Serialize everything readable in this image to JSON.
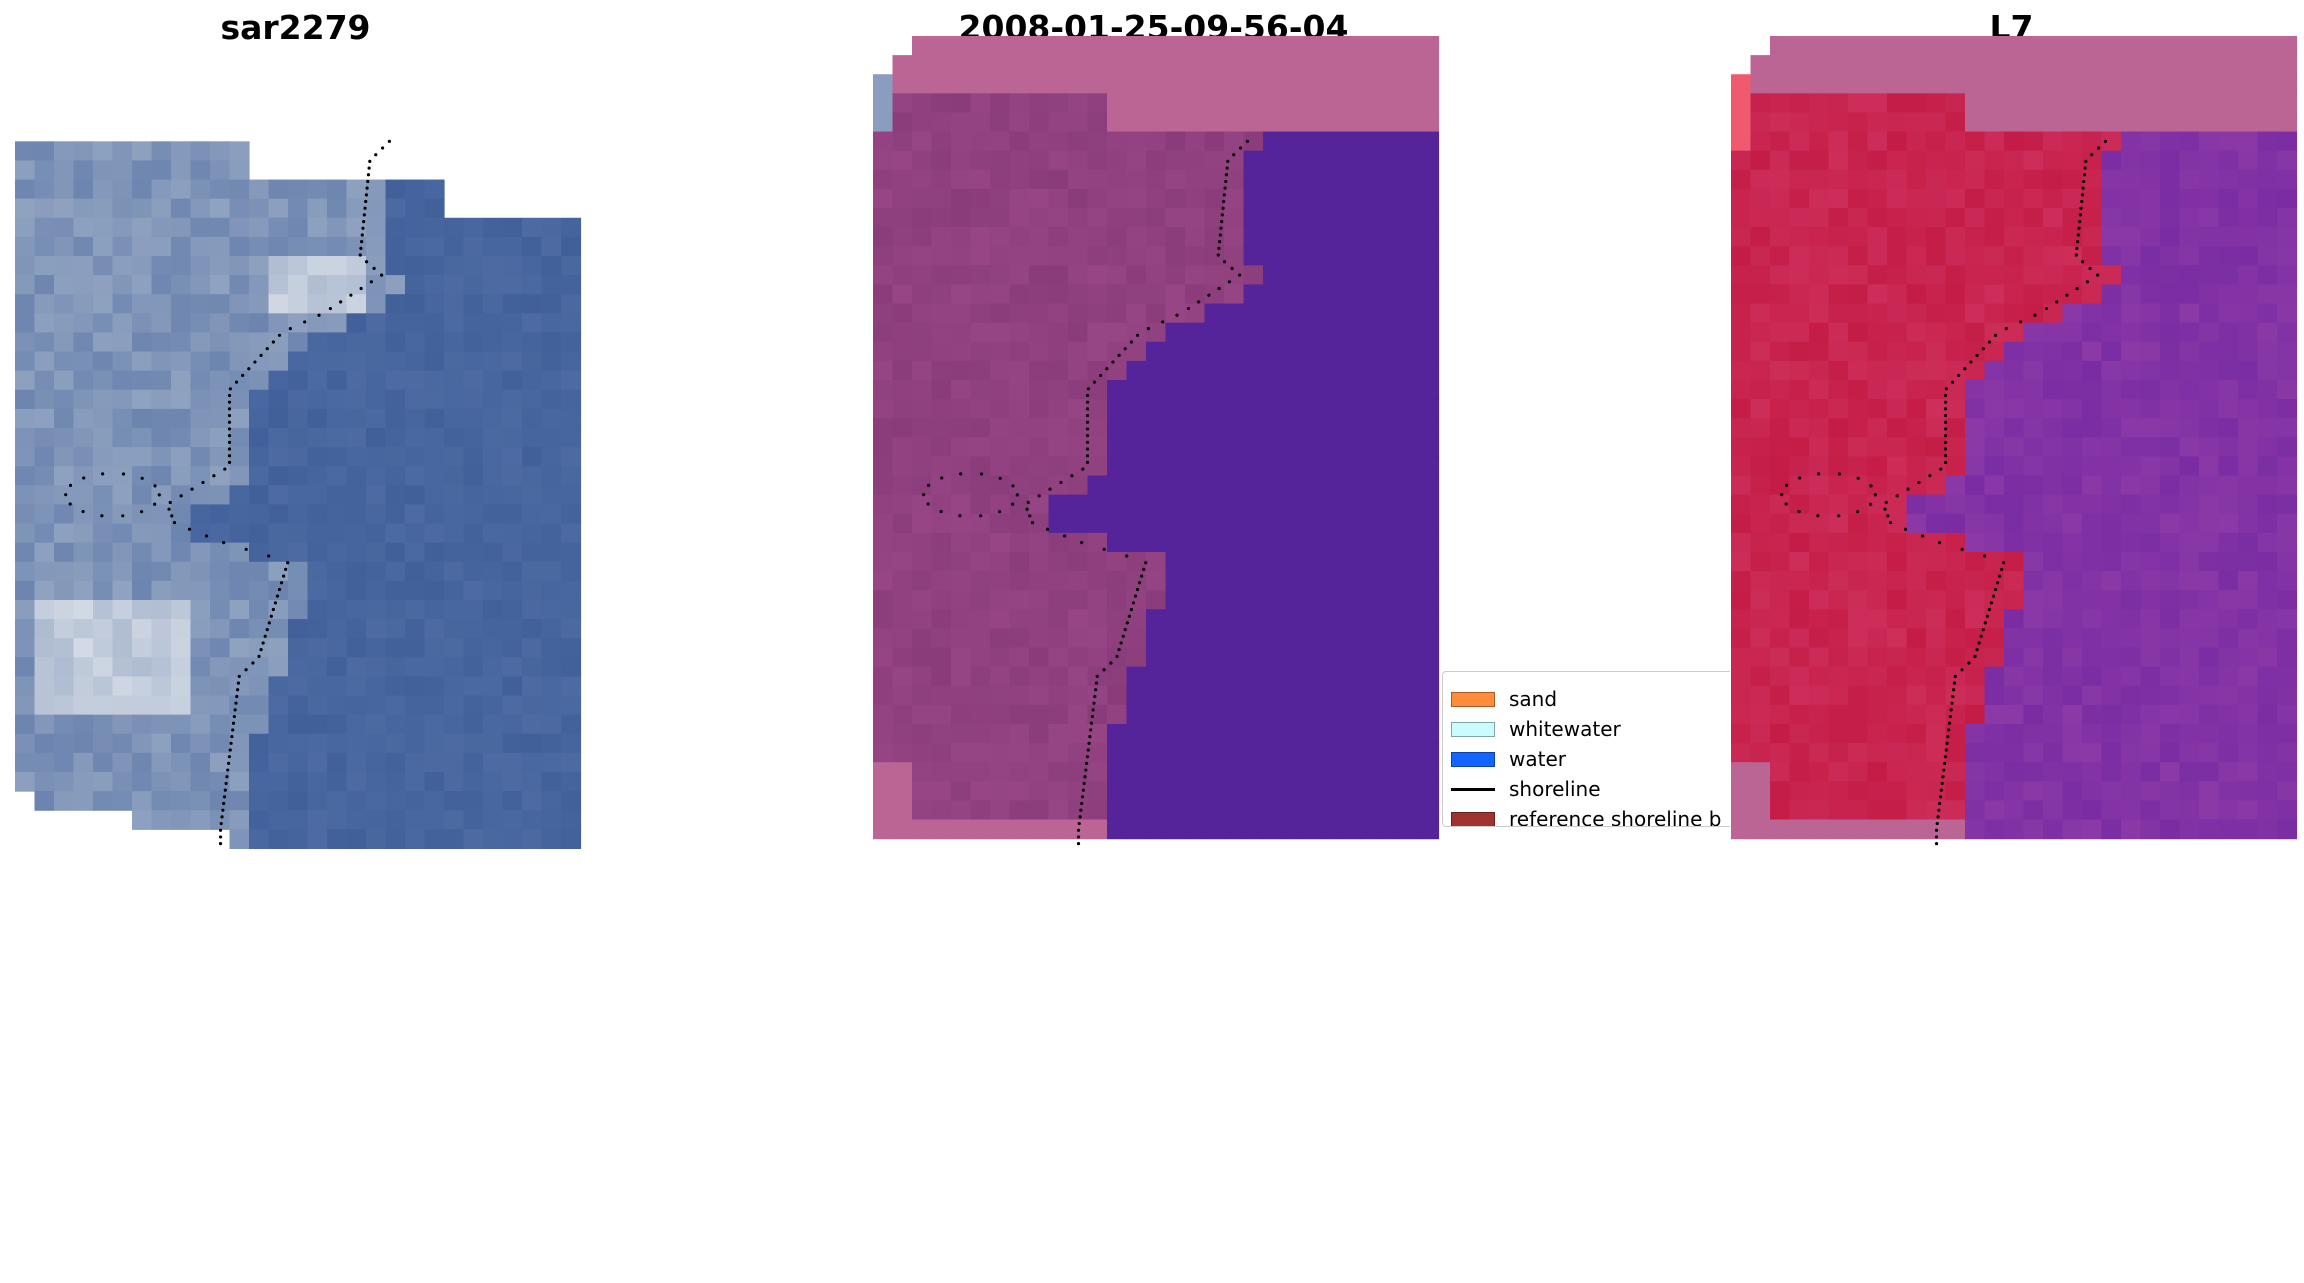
{
  "panels": [
    {
      "title": "sar2279",
      "style": "rgb"
    },
    {
      "title": "2008-01-25-09-56-04",
      "style": "classified"
    },
    {
      "title": "L7",
      "style": "index"
    }
  ],
  "legend": {
    "items": [
      {
        "label": "sand",
        "color": "#ff8c3a",
        "kind": "patch"
      },
      {
        "label": "whitewater",
        "color": "#c9fcff",
        "kind": "patch"
      },
      {
        "label": "water",
        "color": "#1464ff",
        "kind": "patch"
      },
      {
        "label": "shoreline",
        "color": "#000000",
        "kind": "line"
      },
      {
        "label": "reference shoreline b",
        "color": "#a03232",
        "kind": "patch"
      }
    ]
  },
  "colors": {
    "water_rgb": "#41609a",
    "land_rgb": "#8fa2c0",
    "bright_rgb": "#dde2ea",
    "water_classified": "#55239a",
    "land_classified": "#8a3c7a",
    "nodata_classified": "#bb6595",
    "land_index": "#c41c46",
    "water_index": "#8a39a6",
    "nodata_index": "#bb6595"
  }
}
